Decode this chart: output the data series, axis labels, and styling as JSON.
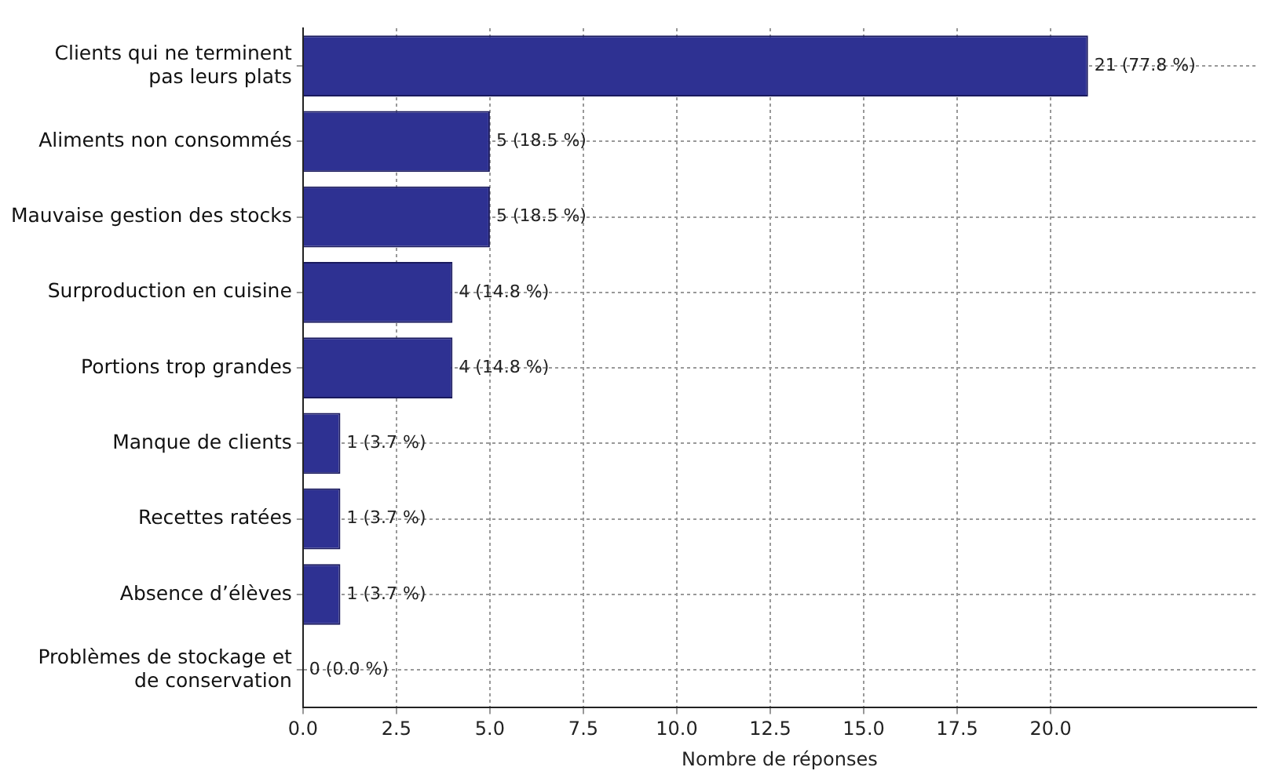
{
  "chart_data": {
    "type": "bar",
    "orientation": "horizontal",
    "xlabel": "Nombre de réponses",
    "categories": [
      "Clients qui ne terminent\npas leurs plats",
      "Aliments non consommés",
      "Mauvaise gestion des stocks",
      "Surproduction en cuisine",
      "Portions trop grandes",
      "Manque de clients",
      "Recettes ratées",
      "Absence d’élèves",
      "Problèmes de stockage et\nde conservation"
    ],
    "values": [
      21,
      5,
      5,
      4,
      4,
      1,
      1,
      1,
      0
    ],
    "value_labels": [
      "21 (77.8 %)",
      "5 (18.5 %)",
      "5 (18.5 %)",
      "4 (14.8 %)",
      "4 (14.8 %)",
      "1 (3.7 %)",
      "1 (3.7 %)",
      "1 (3.7 %)",
      "0 (0.0 %)"
    ],
    "color": "#2e3192",
    "xlim": [
      0,
      25.5
    ],
    "xticks": [
      {
        "value": 0,
        "label": "0.0"
      },
      {
        "value": 2.5,
        "label": "2.5"
      },
      {
        "value": 5,
        "label": "5.0"
      },
      {
        "value": 7.5,
        "label": "7.5"
      },
      {
        "value": 10,
        "label": "10.0"
      },
      {
        "value": 12.5,
        "label": "12.5"
      },
      {
        "value": 15,
        "label": "15.0"
      },
      {
        "value": 17.5,
        "label": "17.5"
      },
      {
        "value": 20,
        "label": "20.0"
      }
    ],
    "grid": true
  }
}
